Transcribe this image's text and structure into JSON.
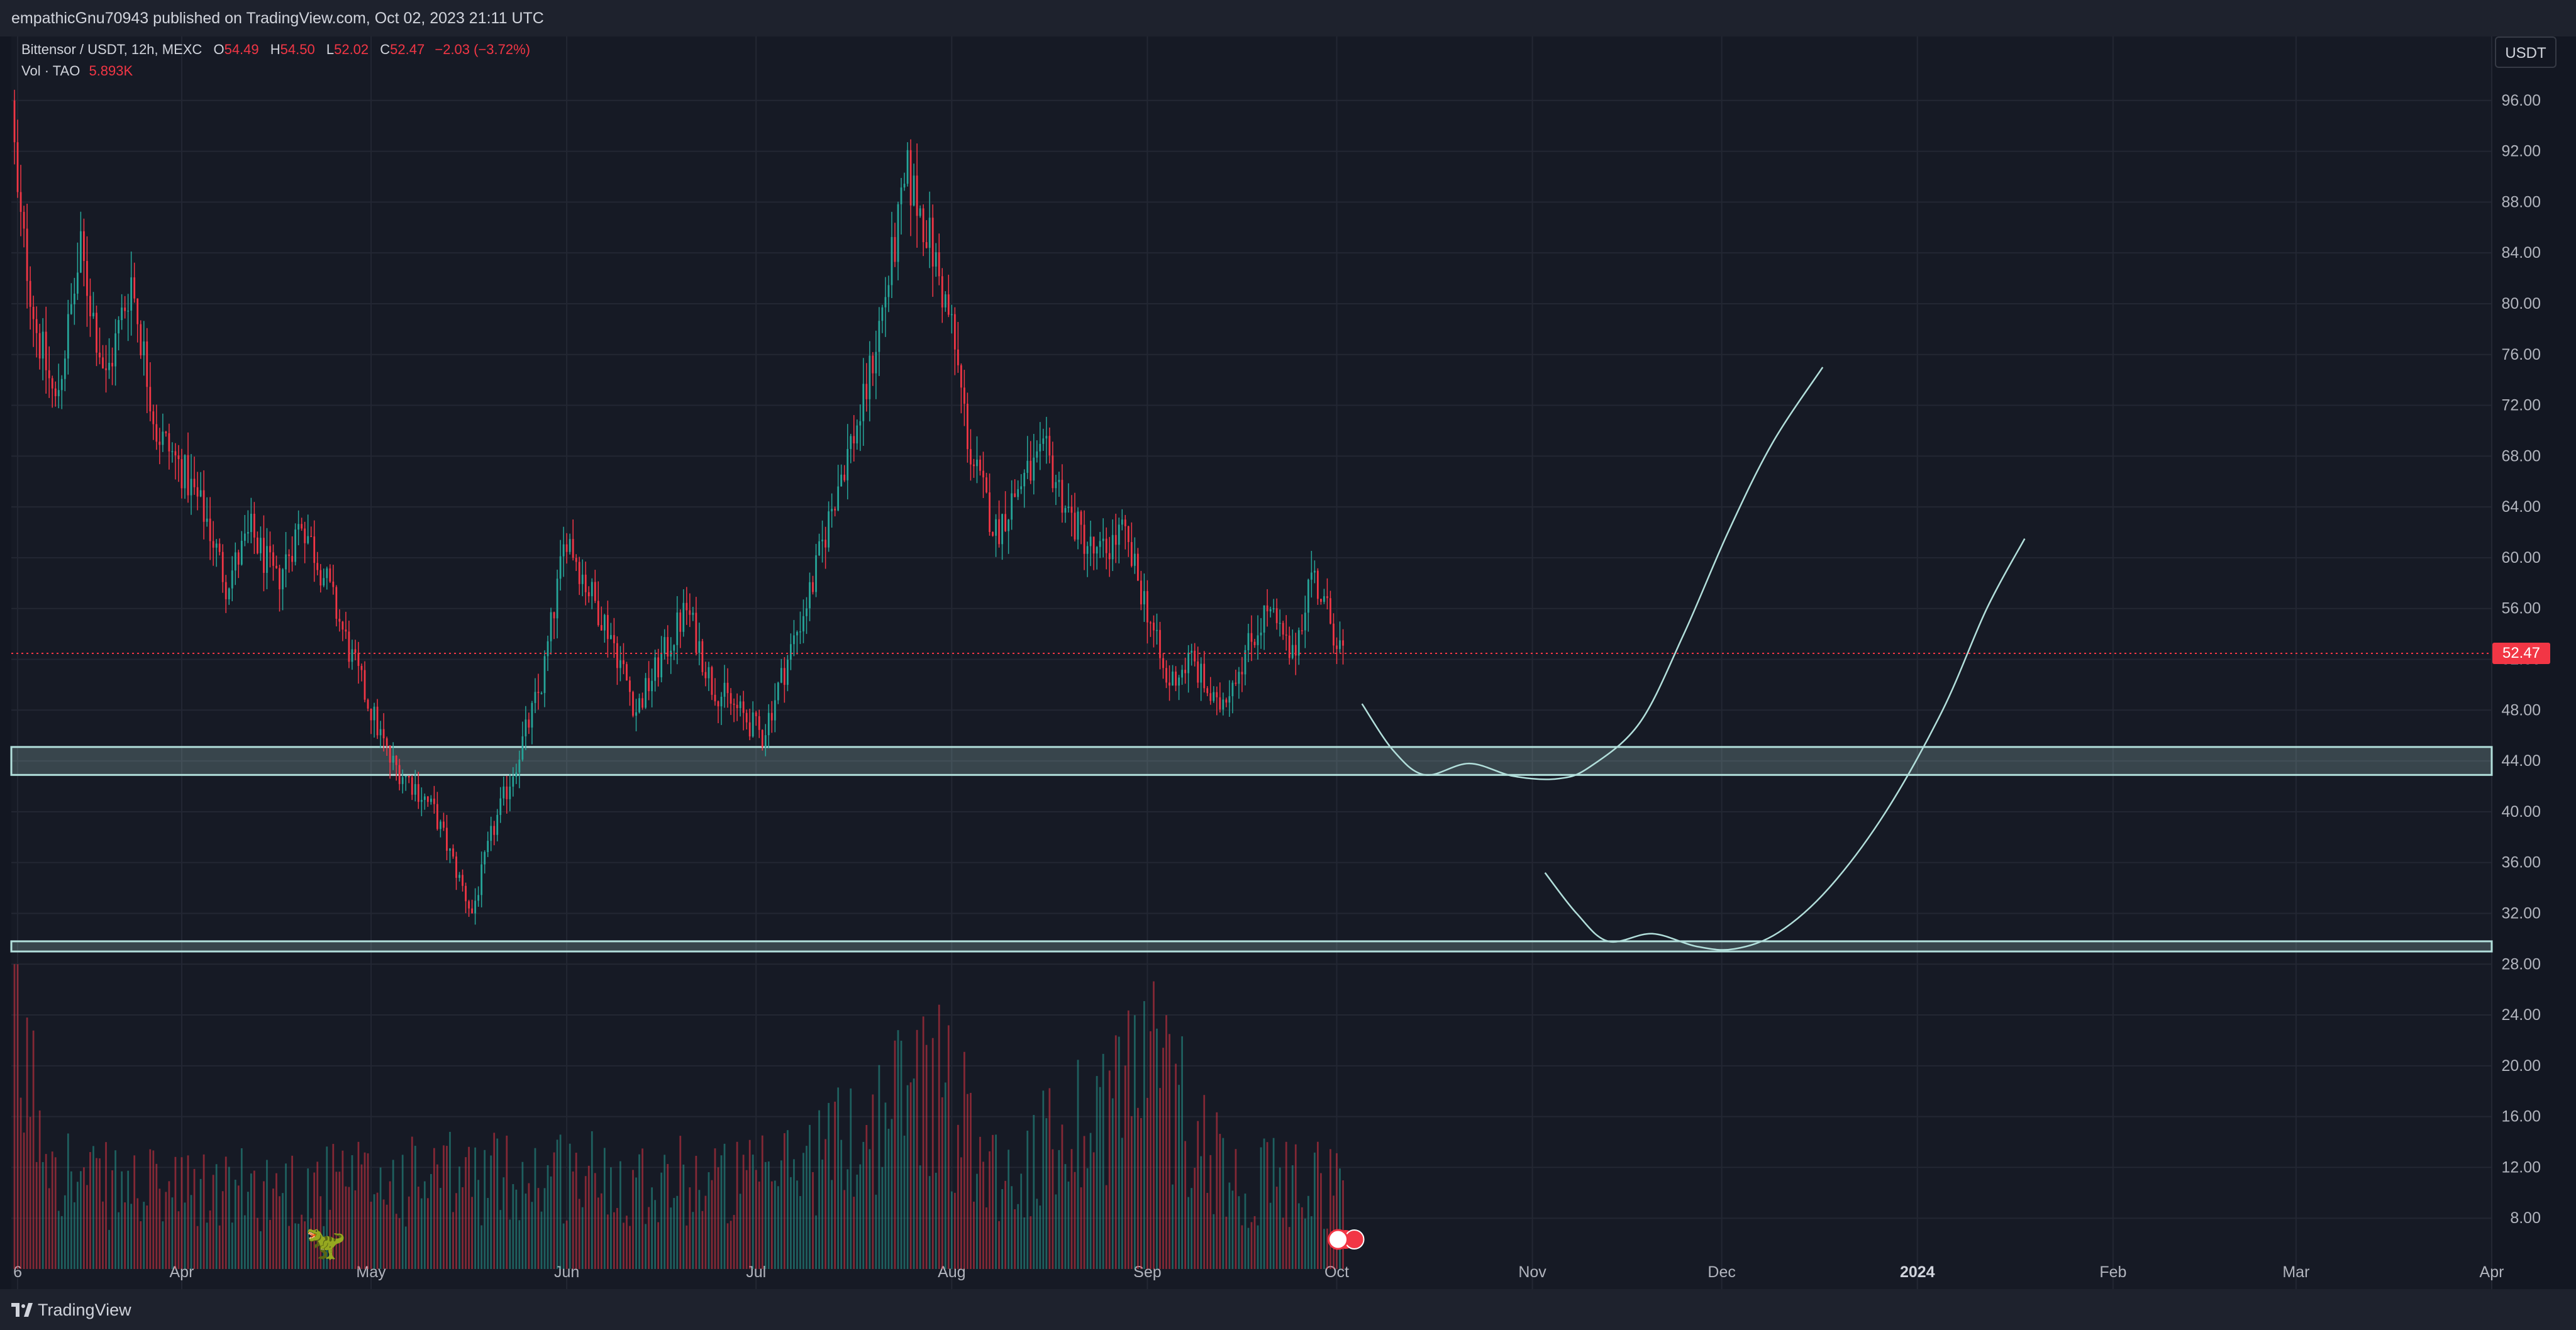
{
  "header": {
    "attribution": "empathicGnu70943 published on TradingView.com, Oct 02, 2023 21:11 UTC"
  },
  "legend": {
    "symbol": "Bittensor / USDT, 12h, MEXC",
    "open_label": "O",
    "open": "54.49",
    "high_label": "H",
    "high": "54.50",
    "low_label": "L",
    "low": "52.02",
    "close_label": "C",
    "close": "52.47",
    "change": "−2.03 (−3.72%)",
    "volume_label": "Vol · TAO",
    "volume": "5.893K"
  },
  "price_axis": {
    "currency": "USDT",
    "last_price": "52.47"
  },
  "footer": {
    "brand": "TradingView"
  },
  "colors": {
    "background": "#161a25",
    "up": "#26a69a",
    "down": "#f23645",
    "zone_fill": "#b2dfdb",
    "drawing": "#b2dfdb"
  },
  "chart_data": {
    "type": "candlestick",
    "title": "Bittensor / USDT, 12h, MEXC",
    "x_range": [
      "2023-03-05",
      "2024-04-01"
    ],
    "ylim": [
      4,
      100
    ],
    "y_ticks": [
      "96.00",
      "92.00",
      "88.00",
      "84.00",
      "80.00",
      "76.00",
      "72.00",
      "68.00",
      "64.00",
      "60.00",
      "56.00",
      "52.00",
      "48.00",
      "44.00",
      "40.00",
      "36.00",
      "32.00",
      "28.00",
      "24.00",
      "20.00",
      "16.00",
      "12.00",
      "8.00"
    ],
    "x_ticks": [
      {
        "label": "6",
        "date": "2023-03-06"
      },
      {
        "label": "Apr",
        "date": "2023-04-01"
      },
      {
        "label": "May",
        "date": "2023-05-01"
      },
      {
        "label": "Jun",
        "date": "2023-06-01"
      },
      {
        "label": "Jul",
        "date": "2023-07-01"
      },
      {
        "label": "Aug",
        "date": "2023-08-01"
      },
      {
        "label": "Sep",
        "date": "2023-09-01"
      },
      {
        "label": "Oct",
        "date": "2023-10-01"
      },
      {
        "label": "Nov",
        "date": "2023-11-01"
      },
      {
        "label": "Dec",
        "date": "2023-12-01"
      },
      {
        "label": "2024",
        "date": "2024-01-01"
      },
      {
        "label": "Feb",
        "date": "2024-02-01"
      },
      {
        "label": "Mar",
        "date": "2024-03-01"
      },
      {
        "label": "Apr",
        "date": "2024-04-01"
      }
    ],
    "price_path": [
      [
        "2023-03-05",
        96
      ],
      [
        "2023-03-06",
        88
      ],
      [
        "2023-03-09",
        78
      ],
      [
        "2023-03-12",
        72
      ],
      [
        "2023-03-16",
        84
      ],
      [
        "2023-03-20",
        74
      ],
      [
        "2023-03-24",
        82
      ],
      [
        "2023-03-28",
        70
      ],
      [
        "2023-04-01",
        67
      ],
      [
        "2023-04-05",
        63
      ],
      [
        "2023-04-08",
        58
      ],
      [
        "2023-04-12",
        62
      ],
      [
        "2023-04-16",
        58
      ],
      [
        "2023-04-20",
        63
      ],
      [
        "2023-04-24",
        58
      ],
      [
        "2023-04-28",
        52
      ],
      [
        "2023-05-01",
        48
      ],
      [
        "2023-05-04",
        44
      ],
      [
        "2023-05-08",
        42
      ],
      [
        "2023-05-11",
        40
      ],
      [
        "2023-05-14",
        36
      ],
      [
        "2023-05-17",
        32
      ],
      [
        "2023-05-20",
        38
      ],
      [
        "2023-05-24",
        44
      ],
      [
        "2023-05-28",
        50
      ],
      [
        "2023-06-01",
        62
      ],
      [
        "2023-06-04",
        58
      ],
      [
        "2023-06-08",
        54
      ],
      [
        "2023-06-12",
        48
      ],
      [
        "2023-06-16",
        52
      ],
      [
        "2023-06-20",
        56
      ],
      [
        "2023-06-24",
        50
      ],
      [
        "2023-06-28",
        48
      ],
      [
        "2023-07-02",
        46
      ],
      [
        "2023-07-06",
        52
      ],
      [
        "2023-07-10",
        58
      ],
      [
        "2023-07-14",
        66
      ],
      [
        "2023-07-18",
        72
      ],
      [
        "2023-07-22",
        82
      ],
      [
        "2023-07-25",
        90
      ],
      [
        "2023-07-28",
        86
      ],
      [
        "2023-08-01",
        78
      ],
      [
        "2023-08-04",
        68
      ],
      [
        "2023-08-08",
        62
      ],
      [
        "2023-08-12",
        66
      ],
      [
        "2023-08-16",
        68
      ],
      [
        "2023-08-20",
        63
      ],
      [
        "2023-08-24",
        60
      ],
      [
        "2023-08-28",
        62
      ],
      [
        "2023-09-01",
        56
      ],
      [
        "2023-09-04",
        50
      ],
      [
        "2023-09-08",
        52
      ],
      [
        "2023-09-12",
        48
      ],
      [
        "2023-09-16",
        52
      ],
      [
        "2023-09-20",
        56
      ],
      [
        "2023-09-24",
        52
      ],
      [
        "2023-09-27",
        59
      ],
      [
        "2023-09-30",
        55
      ],
      [
        "2023-10-02",
        52.47
      ]
    ],
    "volume_path": [
      [
        "2023-03-05",
        27
      ],
      [
        "2023-03-07",
        20
      ],
      [
        "2023-03-15",
        9
      ],
      [
        "2023-04-01",
        8
      ],
      [
        "2023-05-01",
        9
      ],
      [
        "2023-06-01",
        10
      ],
      [
        "2023-07-01",
        9
      ],
      [
        "2023-07-20",
        15
      ],
      [
        "2023-07-28",
        21
      ],
      [
        "2023-08-10",
        9
      ],
      [
        "2023-09-01",
        22
      ],
      [
        "2023-09-15",
        9
      ],
      [
        "2023-10-02",
        9
      ]
    ],
    "last_price": 52.47,
    "zones": [
      {
        "low": 42.9,
        "high": 45.1
      },
      {
        "low": 29.0,
        "high": 29.8
      }
    ],
    "projection_paths": [
      [
        [
          "2023-10-05",
          48.5
        ],
        [
          "2023-10-10",
          44.8
        ],
        [
          "2023-10-15",
          42.9
        ],
        [
          "2023-10-22",
          43.8
        ],
        [
          "2023-10-29",
          42.8
        ],
        [
          "2023-11-05",
          42.6
        ],
        [
          "2023-11-10",
          43.5
        ],
        [
          "2023-11-18",
          47
        ],
        [
          "2023-11-25",
          54
        ],
        [
          "2023-12-02",
          62
        ],
        [
          "2023-12-09",
          69
        ],
        [
          "2023-12-17",
          75
        ]
      ],
      [
        [
          "2023-11-03",
          35.2
        ],
        [
          "2023-11-08",
          32
        ],
        [
          "2023-11-13",
          29.8
        ],
        [
          "2023-11-20",
          30.4
        ],
        [
          "2023-11-27",
          29.4
        ],
        [
          "2023-12-03",
          29.2
        ],
        [
          "2023-12-10",
          30.5
        ],
        [
          "2023-12-18",
          34
        ],
        [
          "2023-12-27",
          40
        ],
        [
          "2024-01-05",
          48
        ],
        [
          "2024-01-12",
          56
        ],
        [
          "2024-01-18",
          61.5
        ]
      ]
    ]
  }
}
